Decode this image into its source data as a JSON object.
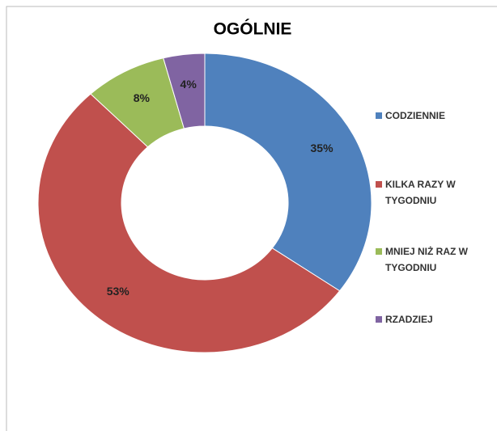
{
  "chart_data": {
    "type": "donut",
    "title": "OGÓLNIE",
    "categories": [
      "CODZIENNIE",
      "KILKA RAZY W TYGODNIU",
      "MNIEJ NIŻ RAZ W TYGODNIU",
      "RZADZIEJ"
    ],
    "values": [
      35,
      53,
      8,
      4
    ],
    "value_labels": [
      "35%",
      "53%",
      "8%",
      "4%"
    ],
    "colors": [
      "#4f81bd",
      "#c0504d",
      "#9bbb59",
      "#8064a2"
    ],
    "legend": "right"
  }
}
